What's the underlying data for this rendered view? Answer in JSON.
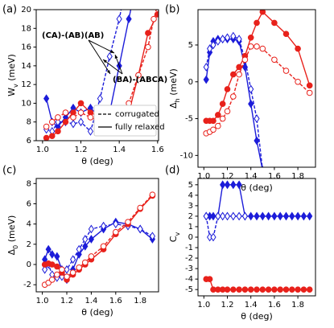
{
  "chart_data": [
    {
      "type": "line",
      "panel_label": "(a)",
      "xlabel": "θ (deg)",
      "ylabel": {
        "base": "W",
        "sub": "v",
        "rest": " (meV)"
      },
      "xlim": [
        0.967,
        1.605
      ],
      "ylim": [
        6,
        20
      ],
      "xticks": [
        {
          "value": 1,
          "label": "1.0"
        },
        1.2,
        1.4,
        1.6
      ],
      "yticks": [
        6,
        8,
        10,
        12,
        14,
        16,
        18,
        20
      ],
      "series": [
        {
          "color": "#1c1cd9",
          "marker": "diamond",
          "filled": true,
          "dashed": false,
          "x": [
            1.02,
            1.05,
            1.08,
            1.12,
            1.16,
            1.2,
            1.25,
            1.3,
            1.35,
            1.4,
            1.45,
            1.47
          ],
          "values": [
            10.5,
            8,
            7.5,
            8.5,
            9.5,
            9,
            9.5,
            8.5,
            9,
            14,
            19,
            21
          ]
        },
        {
          "color": "#1c1cd9",
          "marker": "diamond",
          "filled": false,
          "dashed": true,
          "x": [
            1.02,
            1.05,
            1.08,
            1.12,
            1.16,
            1.2,
            1.25,
            1.3,
            1.35,
            1.4,
            1.42
          ],
          "values": [
            7.2,
            7,
            8,
            8,
            7.8,
            8,
            7,
            10.5,
            15,
            19,
            21
          ]
        },
        {
          "color": "#e8211b",
          "marker": "circle",
          "filled": true,
          "dashed": false,
          "x": [
            1.02,
            1.05,
            1.08,
            1.12,
            1.16,
            1.2,
            1.25,
            1.3,
            1.35,
            1.4,
            1.45,
            1.5,
            1.55,
            1.6,
            1.62
          ],
          "values": [
            6.3,
            6.5,
            7,
            8,
            9,
            10,
            9,
            8.5,
            7.8,
            8,
            9,
            13,
            17.5,
            19.5,
            21
          ]
        },
        {
          "color": "#e8211b",
          "marker": "circle",
          "filled": false,
          "dashed": true,
          "x": [
            1.02,
            1.05,
            1.08,
            1.12,
            1.16,
            1.2,
            1.25,
            1.3,
            1.35,
            1.4,
            1.45,
            1.5,
            1.55,
            1.58,
            1.6
          ],
          "values": [
            7.5,
            8,
            8.5,
            9,
            8.5,
            9,
            8.5,
            8,
            8,
            8.2,
            10,
            13,
            16,
            19,
            20.5
          ]
        }
      ],
      "annotations": [
        "(CA)-(AB)(AB)",
        "(BA)-(ABCA)"
      ],
      "legend": [
        {
          "label": "corrugated",
          "style": "dashed"
        },
        {
          "label": "fully relaxed",
          "style": "solid"
        }
      ]
    },
    {
      "type": "line",
      "panel_label": "(b)",
      "xlabel": "θ (deg)",
      "ylabel": {
        "base": "Δ",
        "sub": "h",
        "rest": " (meV)"
      },
      "xlim": [
        0.95,
        1.95
      ],
      "ylim": [
        -11.6,
        9.8
      ],
      "xticks": [
        {
          "value": 1,
          "label": "1.0"
        },
        1.2,
        1.4,
        1.6,
        1.8
      ],
      "yticks": [
        -10,
        -5,
        0,
        5
      ],
      "series": [
        {
          "color": "#1c1cd9",
          "marker": "diamond",
          "filled": true,
          "dashed": false,
          "x": [
            1.02,
            1.05,
            1.08,
            1.12,
            1.16,
            1.2,
            1.25,
            1.3,
            1.35,
            1.4,
            1.45,
            1.5
          ],
          "values": [
            0.3,
            4,
            5.5,
            5.8,
            5.8,
            5.8,
            5.8,
            5.5,
            2,
            -3,
            -8,
            -12
          ]
        },
        {
          "color": "#1c1cd9",
          "marker": "diamond",
          "filled": false,
          "dashed": true,
          "x": [
            1.02,
            1.05,
            1.08,
            1.12,
            1.16,
            1.2,
            1.25,
            1.3,
            1.35,
            1.4,
            1.45,
            1.5
          ],
          "values": [
            2,
            4.5,
            5,
            5.5,
            5.8,
            6,
            6.2,
            5.8,
            3,
            -1,
            -5,
            -12
          ]
        },
        {
          "color": "#e8211b",
          "marker": "circle",
          "filled": true,
          "dashed": false,
          "x": [
            1.02,
            1.05,
            1.08,
            1.12,
            1.16,
            1.2,
            1.25,
            1.3,
            1.35,
            1.4,
            1.45,
            1.5,
            1.6,
            1.7,
            1.8,
            1.9
          ],
          "values": [
            -5.3,
            -5.3,
            -5.3,
            -4.5,
            -3,
            -1,
            1,
            2,
            3.5,
            6,
            8,
            9.5,
            8,
            6.5,
            4.5,
            -0.5
          ]
        },
        {
          "color": "#e8211b",
          "marker": "circle",
          "filled": false,
          "dashed": true,
          "x": [
            1.02,
            1.05,
            1.08,
            1.12,
            1.16,
            1.2,
            1.25,
            1.3,
            1.35,
            1.4,
            1.45,
            1.5,
            1.6,
            1.7,
            1.8,
            1.9
          ],
          "values": [
            -7,
            -6.8,
            -6.5,
            -6,
            -5,
            -4,
            -2,
            1,
            3,
            4.8,
            4.8,
            4.5,
            3,
            1.5,
            0,
            -1.5
          ]
        }
      ]
    },
    {
      "type": "line",
      "panel_label": "(c)",
      "xlabel": "θ (deg)",
      "ylabel": {
        "base": "Δ",
        "sub": "0",
        "rest": " (meV)"
      },
      "xlim": [
        0.95,
        1.95
      ],
      "ylim": [
        -2.7,
        8.5
      ],
      "xticks": [
        {
          "value": 1,
          "label": "1.0"
        },
        1.2,
        1.4,
        1.6,
        1.8
      ],
      "yticks": [
        -2,
        0,
        2,
        4,
        6,
        8
      ],
      "series": [
        {
          "color": "#1c1cd9",
          "marker": "diamond",
          "filled": true,
          "dashed": false,
          "x": [
            1.02,
            1.05,
            1.08,
            1.12,
            1.16,
            1.2,
            1.25,
            1.3,
            1.35,
            1.4,
            1.5,
            1.6,
            1.7,
            1.8,
            1.9
          ],
          "values": [
            0.5,
            1.5,
            1,
            0.8,
            -0.5,
            -1.5,
            -0.5,
            1,
            1.8,
            2.5,
            3.5,
            4.2,
            4,
            3.5,
            2.5
          ]
        },
        {
          "color": "#1c1cd9",
          "marker": "diamond",
          "filled": false,
          "dashed": true,
          "x": [
            1.02,
            1.05,
            1.08,
            1.12,
            1.16,
            1.2,
            1.25,
            1.3,
            1.35,
            1.4,
            1.5,
            1.6,
            1.7,
            1.8,
            1.9
          ],
          "values": [
            -0.5,
            0,
            -1,
            -1.3,
            -1.2,
            -0.5,
            0.5,
            1.5,
            2.5,
            3.5,
            3.8,
            4,
            3.8,
            3.5,
            2.8
          ]
        },
        {
          "color": "#e8211b",
          "marker": "circle",
          "filled": true,
          "dashed": false,
          "x": [
            1.02,
            1.05,
            1.08,
            1.12,
            1.16,
            1.2,
            1.25,
            1.3,
            1.35,
            1.4,
            1.5,
            1.6,
            1.7,
            1.8,
            1.9
          ],
          "values": [
            0,
            0.1,
            0,
            -0.2,
            -0.8,
            -1.5,
            -1,
            -0.5,
            0,
            0.5,
            1.5,
            3,
            4,
            5.5,
            6.8
          ]
        },
        {
          "color": "#e8211b",
          "marker": "circle",
          "filled": false,
          "dashed": true,
          "x": [
            1.02,
            1.05,
            1.08,
            1.12,
            1.16,
            1.2,
            1.25,
            1.3,
            1.35,
            1.4,
            1.5,
            1.6,
            1.7,
            1.8,
            1.9
          ],
          "values": [
            -2,
            -1.8,
            -1.5,
            -1,
            -0.5,
            -1.2,
            -0.8,
            -0.3,
            0.2,
            0.8,
            1.8,
            3.2,
            4.2,
            5.6,
            6.9
          ]
        }
      ]
    },
    {
      "type": "line",
      "panel_label": "(d)",
      "xlabel": "θ (deg)",
      "ylabel": {
        "base": "C",
        "sub": "v",
        "rest": ""
      },
      "xlim": [
        0.95,
        1.95
      ],
      "ylim": [
        -5.6,
        5.6
      ],
      "xticks": [
        {
          "value": 1,
          "label": "1.0"
        },
        1.2,
        1.4,
        1.6,
        1.8
      ],
      "yticks": [
        -5,
        -4,
        -3,
        -2,
        -1,
        0,
        1,
        2,
        3,
        4,
        5
      ],
      "series": [
        {
          "color": "#1c1cd9",
          "marker": "diamond",
          "filled": true,
          "dashed": false,
          "x": [
            1.02,
            1.05,
            1.08,
            1.12,
            1.16,
            1.2,
            1.25,
            1.3,
            1.35,
            1.4,
            1.45,
            1.5,
            1.55,
            1.6,
            1.65,
            1.7,
            1.75,
            1.8,
            1.85,
            1.9
          ],
          "values": [
            2,
            2,
            2,
            2,
            5,
            5,
            5,
            5,
            2,
            2,
            2,
            2,
            2,
            2,
            2,
            2,
            2,
            2,
            2,
            2
          ]
        },
        {
          "color": "#1c1cd9",
          "marker": "diamond",
          "filled": false,
          "dashed": true,
          "x": [
            1.02,
            1.05,
            1.08,
            1.12,
            1.16,
            1.2,
            1.25,
            1.3,
            1.35
          ],
          "values": [
            2,
            0,
            0,
            2,
            2,
            2,
            2,
            2,
            2
          ]
        },
        {
          "color": "#e8211b",
          "marker": "circle",
          "filled": true,
          "dashed": false,
          "x": [
            1.02,
            1.05,
            1.08,
            1.12,
            1.16,
            1.2,
            1.25,
            1.3,
            1.35,
            1.4,
            1.45,
            1.5,
            1.55,
            1.6,
            1.65,
            1.7,
            1.75,
            1.8,
            1.85,
            1.9
          ],
          "values": [
            -4,
            -4,
            -5,
            -5,
            -5,
            -5,
            -5,
            -5,
            -5,
            -5,
            -5,
            -5,
            -5,
            -5,
            -5,
            -5,
            -5,
            -5,
            -5,
            -5
          ]
        }
      ]
    }
  ]
}
